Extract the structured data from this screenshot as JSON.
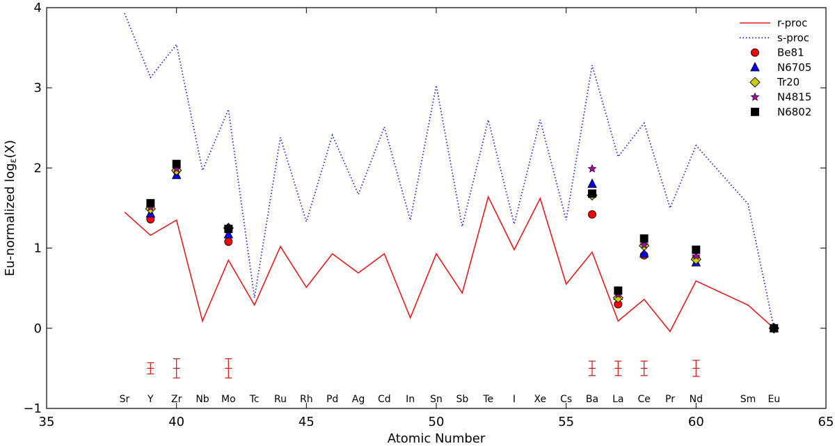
{
  "chart_data": {
    "type": "line",
    "xlabel": "Atomic Number",
    "ylabel": "Eu-normalized logε(X)",
    "xlim": [
      35,
      65
    ],
    "ylim": [
      -1,
      4
    ],
    "xticks": [
      "35",
      "40",
      "45",
      "50",
      "55",
      "60",
      "65"
    ],
    "yticks": [
      "−1",
      "0",
      "1",
      "2",
      "3",
      "4"
    ],
    "element_labels": [
      {
        "z": 38,
        "label": "Sr"
      },
      {
        "z": 39,
        "label": "Y"
      },
      {
        "z": 40,
        "label": "Zr"
      },
      {
        "z": 41,
        "label": "Nb"
      },
      {
        "z": 42,
        "label": "Mo"
      },
      {
        "z": 43,
        "label": "Tc"
      },
      {
        "z": 44,
        "label": "Ru"
      },
      {
        "z": 45,
        "label": "Rh"
      },
      {
        "z": 46,
        "label": "Pd"
      },
      {
        "z": 47,
        "label": "Ag"
      },
      {
        "z": 48,
        "label": "Cd"
      },
      {
        "z": 49,
        "label": "In"
      },
      {
        "z": 50,
        "label": "Sn"
      },
      {
        "z": 51,
        "label": "Sb"
      },
      {
        "z": 52,
        "label": "Te"
      },
      {
        "z": 53,
        "label": "I"
      },
      {
        "z": 54,
        "label": "Xe"
      },
      {
        "z": 55,
        "label": "Cs"
      },
      {
        "z": 56,
        "label": "Ba"
      },
      {
        "z": 57,
        "label": "La"
      },
      {
        "z": 58,
        "label": "Ce"
      },
      {
        "z": 59,
        "label": "Pr"
      },
      {
        "z": 60,
        "label": "Nd"
      },
      {
        "z": 62,
        "label": "Sm"
      },
      {
        "z": 63,
        "label": "Eu"
      }
    ],
    "lines": [
      {
        "name": "r-proc",
        "color": "#e41a1c",
        "style": "solid",
        "x": [
          38,
          39,
          40,
          41,
          42,
          43,
          44,
          45,
          46,
          47,
          48,
          49,
          50,
          51,
          52,
          53,
          54,
          55,
          56,
          57,
          58,
          59,
          60,
          62,
          63
        ],
        "y": [
          1.45,
          1.16,
          1.35,
          0.09,
          0.85,
          0.29,
          1.02,
          0.51,
          0.93,
          0.69,
          0.93,
          0.13,
          0.93,
          0.44,
          1.64,
          0.98,
          1.62,
          0.55,
          0.95,
          0.09,
          0.36,
          -0.04,
          0.59,
          0.29,
          0.0
        ]
      },
      {
        "name": "s-proc",
        "color": "#2222dd",
        "style": "dotted",
        "x": [
          38,
          39,
          40,
          41,
          42,
          43,
          44,
          45,
          46,
          47,
          48,
          49,
          50,
          51,
          52,
          53,
          54,
          55,
          56,
          57,
          58,
          59,
          60,
          62,
          63
        ],
        "y": [
          3.93,
          3.13,
          3.54,
          1.97,
          2.73,
          0.38,
          2.38,
          1.33,
          2.41,
          1.67,
          2.51,
          1.35,
          3.03,
          1.27,
          2.6,
          1.3,
          2.6,
          1.35,
          3.28,
          2.14,
          2.56,
          1.5,
          2.28,
          1.55,
          0.0
        ]
      }
    ],
    "series": [
      {
        "name": "Be81",
        "marker": "circle",
        "color": "#ff0000",
        "x": [
          39,
          40,
          42,
          56,
          57,
          58,
          60,
          63
        ],
        "y": [
          1.36,
          1.97,
          1.08,
          1.42,
          0.3,
          0.91,
          0.87,
          0.0
        ]
      },
      {
        "name": "N6705",
        "marker": "triangle",
        "color": "#0000ff",
        "x": [
          39,
          40,
          42,
          56,
          57,
          58,
          60,
          63
        ],
        "y": [
          1.43,
          1.91,
          1.17,
          1.8,
          0.4,
          0.93,
          0.82,
          0.0
        ]
      },
      {
        "name": "Tr20",
        "marker": "diamond",
        "color": "#cccc00",
        "x": [
          39,
          40,
          42,
          56,
          57,
          58,
          60,
          63
        ],
        "y": [
          1.49,
          1.97,
          1.25,
          1.66,
          0.38,
          1.03,
          0.86,
          0.0
        ]
      },
      {
        "name": "N4815",
        "marker": "star",
        "color": "#aa00aa",
        "x": [
          39,
          40,
          42,
          56,
          57,
          58,
          60,
          63
        ],
        "y": [
          1.51,
          1.99,
          1.26,
          1.99,
          0.42,
          1.04,
          0.9,
          0.0
        ]
      },
      {
        "name": "N6802",
        "marker": "square",
        "color": "#000000",
        "x": [
          39,
          40,
          42,
          56,
          57,
          58,
          60,
          63
        ],
        "y": [
          1.56,
          2.05,
          1.24,
          1.68,
          0.47,
          1.12,
          0.98,
          0.0
        ]
      }
    ],
    "error_bars": {
      "color": "#cc2222",
      "center": -0.5,
      "items": [
        {
          "x": 39,
          "err": 0.07
        },
        {
          "x": 40,
          "err": 0.12
        },
        {
          "x": 42,
          "err": 0.12
        },
        {
          "x": 56,
          "err": 0.09
        },
        {
          "x": 57,
          "err": 0.09
        },
        {
          "x": 58,
          "err": 0.09
        },
        {
          "x": 60,
          "err": 0.1
        }
      ]
    },
    "legend": {
      "position": "top-right",
      "entries": [
        "r-proc",
        "s-proc",
        "Be81",
        "N6705",
        "Tr20",
        "N4815",
        "N6802"
      ]
    }
  }
}
